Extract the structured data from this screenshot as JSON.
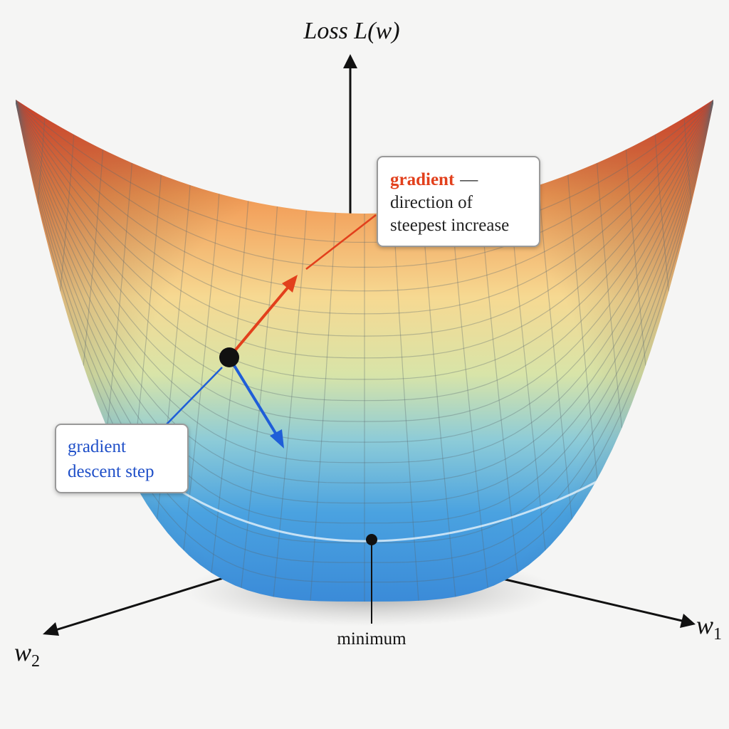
{
  "axes": {
    "vertical": "Loss L(w)",
    "w1": {
      "symbol": "w",
      "subscript": "1"
    },
    "w2": {
      "symbol": "w",
      "subscript": "2"
    }
  },
  "gradient_callout": {
    "term": "gradient",
    "separator": "—",
    "lines": [
      "direction of",
      "steepest increase"
    ]
  },
  "descent_callout": {
    "lines": [
      "gradient",
      "descent step"
    ]
  },
  "minimum_label": "minimum"
}
